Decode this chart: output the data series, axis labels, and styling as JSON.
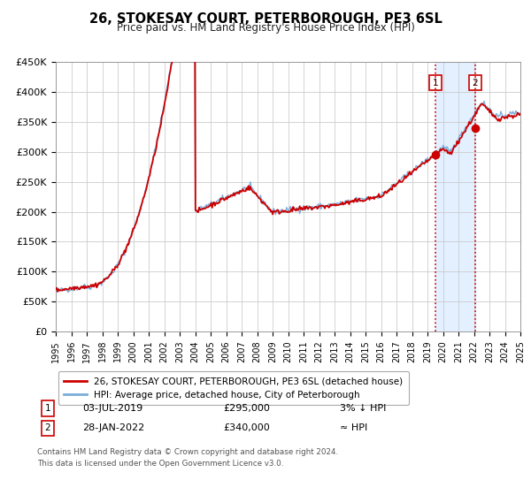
{
  "title": "26, STOKESAY COURT, PETERBOROUGH, PE3 6SL",
  "subtitle": "Price paid vs. HM Land Registry's House Price Index (HPI)",
  "ylim": [
    0,
    450000
  ],
  "yticks": [
    0,
    50000,
    100000,
    150000,
    200000,
    250000,
    300000,
    350000,
    400000,
    450000
  ],
  "ytick_labels": [
    "£0",
    "£50K",
    "£100K",
    "£150K",
    "£200K",
    "£250K",
    "£300K",
    "£350K",
    "£400K",
    "£450K"
  ],
  "xlim_start": 1995,
  "xlim_end": 2025,
  "xticks": [
    1995,
    1996,
    1997,
    1998,
    1999,
    2000,
    2001,
    2002,
    2003,
    2004,
    2005,
    2006,
    2007,
    2008,
    2009,
    2010,
    2011,
    2012,
    2013,
    2014,
    2015,
    2016,
    2017,
    2018,
    2019,
    2020,
    2021,
    2022,
    2023,
    2024,
    2025
  ],
  "sale1_date": 2019.5,
  "sale1_price": 295000,
  "sale1_label": "03-JUL-2019",
  "sale1_price_label": "£295,000",
  "sale1_hpi_label": "3% ↓ HPI",
  "sale2_date": 2022.08,
  "sale2_price": 340000,
  "sale2_label": "28-JAN-2022",
  "sale2_price_label": "£340,000",
  "sale2_hpi_label": "≈ HPI",
  "sale_color": "#cc0000",
  "hpi_color": "#7aadda",
  "shade_color": "#ddeeff",
  "shaded_start": 2019.5,
  "shaded_end": 2022.08,
  "legend1": "26, STOKESAY COURT, PETERBOROUGH, PE3 6SL (detached house)",
  "legend2": "HPI: Average price, detached house, City of Peterborough",
  "footnote1": "Contains HM Land Registry data © Crown copyright and database right 2024.",
  "footnote2": "This data is licensed under the Open Government Licence v3.0.",
  "background_color": "#ffffff",
  "grid_color": "#cccccc"
}
